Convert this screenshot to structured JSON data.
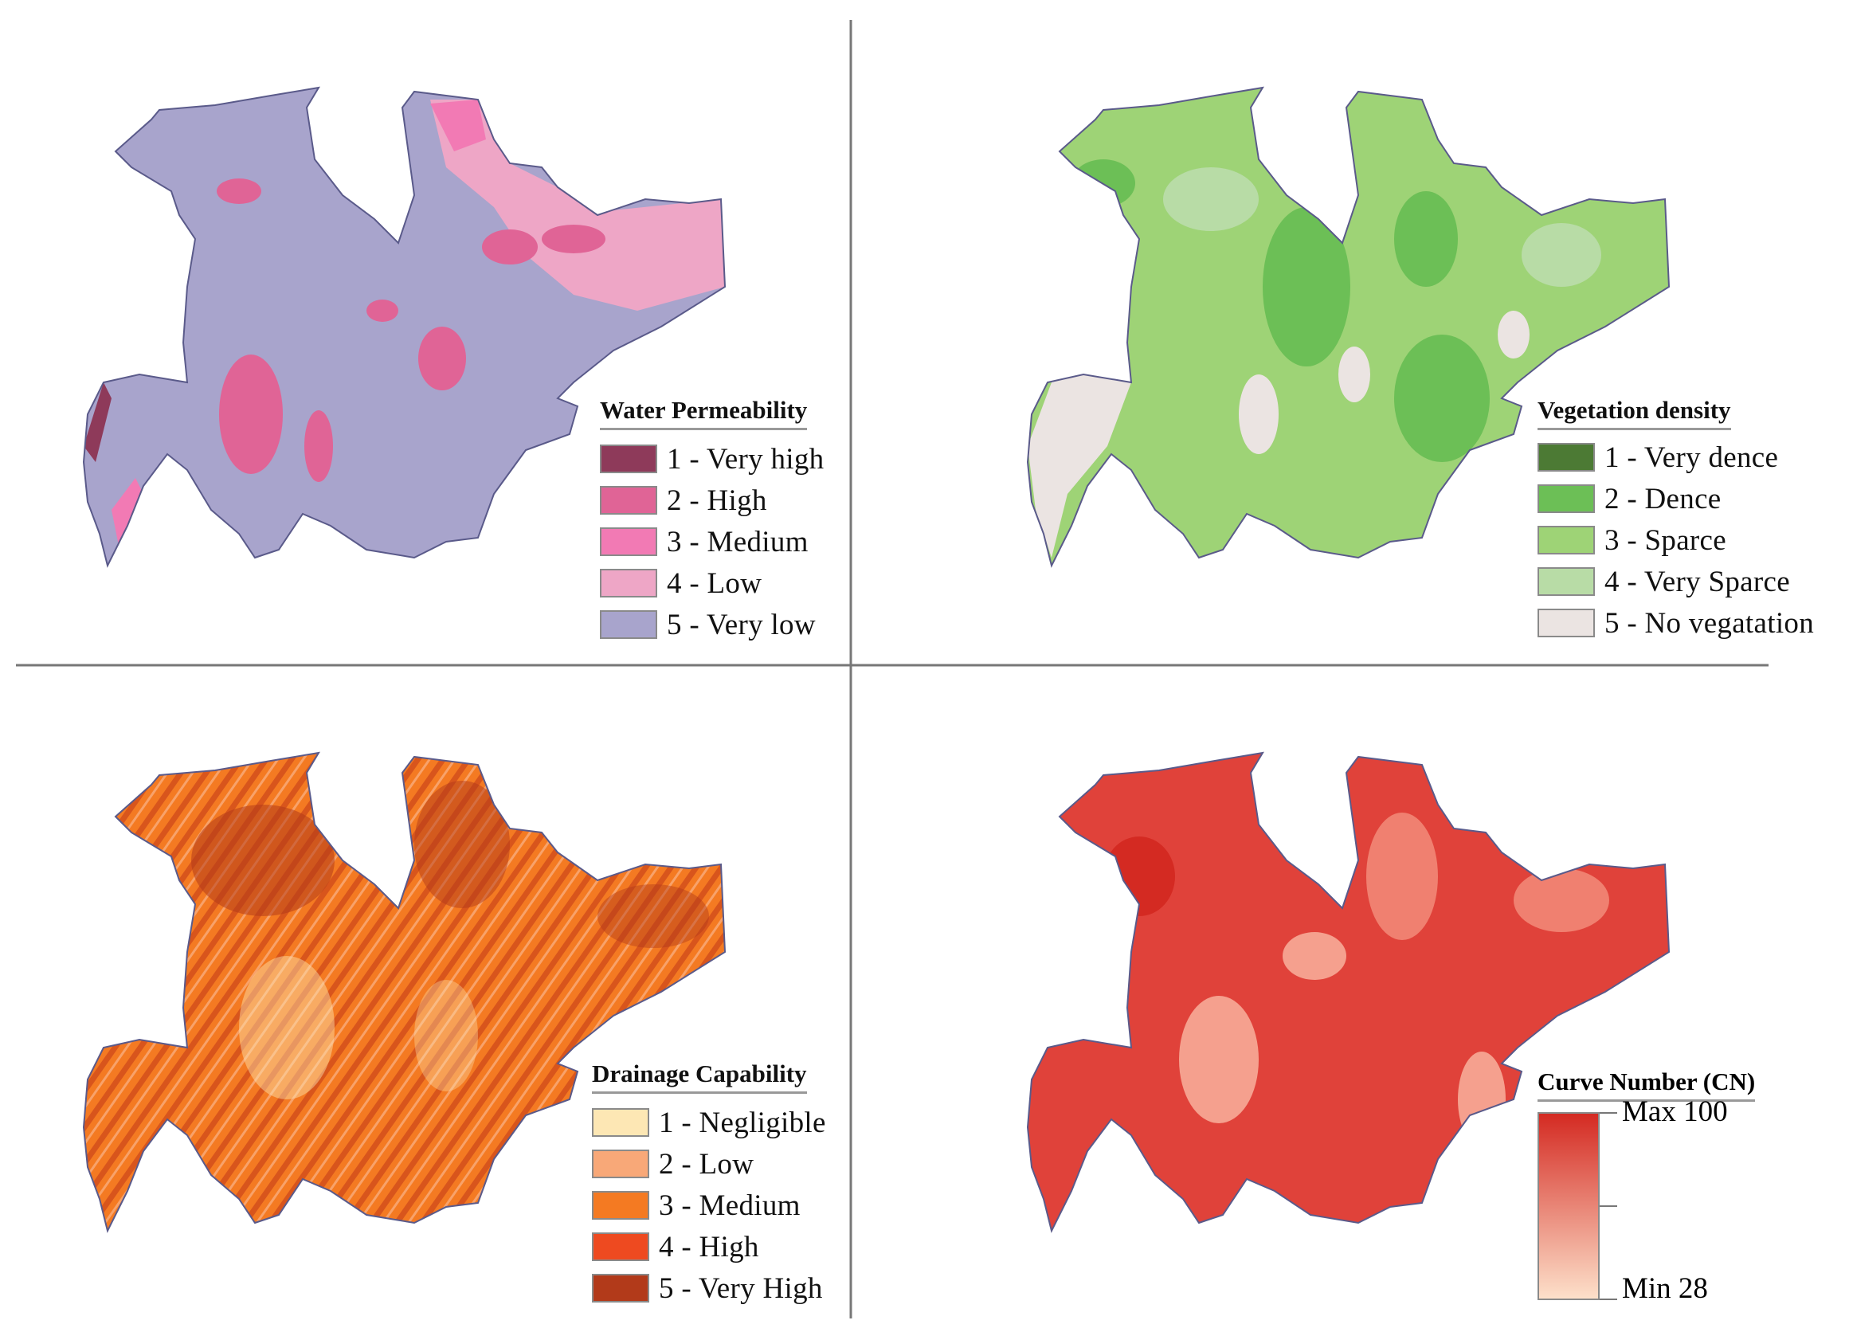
{
  "panels": {
    "water": {
      "title": "Water Permeability",
      "classes": [
        {
          "label": "1 - Very high",
          "color": "#8e3a5a"
        },
        {
          "label": "2 - High",
          "color": "#e06496"
        },
        {
          "label": "3 - Medium",
          "color": "#f27ab4"
        },
        {
          "label": "4 - Low",
          "color": "#eea6c6"
        },
        {
          "label": "5 - Very low",
          "color": "#a8a4cc"
        }
      ]
    },
    "vegetation": {
      "title": "Vegetation density",
      "classes": [
        {
          "label": "1 - Very dence",
          "color": "#4c7a34"
        },
        {
          "label": "2 - Dence",
          "color": "#6cbf56"
        },
        {
          "label": "3 - Sparce",
          "color": "#9ed376"
        },
        {
          "label": "4 - Very Sparce",
          "color": "#b8dca6"
        },
        {
          "label": "5 - No vegatation",
          "color": "#ebe4e2"
        }
      ]
    },
    "drainage": {
      "title": "Drainage Capability",
      "classes": [
        {
          "label": "1 - Negligible",
          "color": "#fde7b4"
        },
        {
          "label": "2 - Low",
          "color": "#f8a878"
        },
        {
          "label": "3 - Medium",
          "color": "#f47a22"
        },
        {
          "label": "4 - High",
          "color": "#ee4a20"
        },
        {
          "label": "5 - Very High",
          "color": "#b23a1a"
        }
      ]
    },
    "curve": {
      "title": "Curve Number (CN)",
      "max_label": "Max 100",
      "min_label": "Min 28",
      "max_color": "#d42a22",
      "min_color": "#fde0ca",
      "max_value": 100,
      "min_value": 28
    }
  }
}
